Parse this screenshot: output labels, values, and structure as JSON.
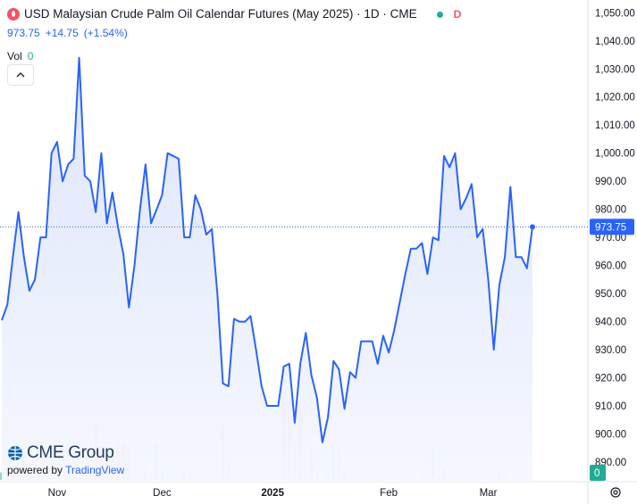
{
  "header": {
    "title": "USD Malaysian Crude Palm Oil Calendar Futures (May 2025) · 1D · CME",
    "delay_badge": "D",
    "last_price": "973.75",
    "change": "+14.75",
    "change_pct": "(+1.54%)",
    "vol_label": "Vol",
    "vol_value": "0",
    "collapse_icon": "chevron-up-icon"
  },
  "branding": {
    "brand": "CME Group",
    "powered_by": "powered by",
    "tradingview": "TradingView"
  },
  "colors": {
    "line": "#2962ff",
    "area_top": "#dbe4fb",
    "area_bottom": "#f5f7fe",
    "volume_up": "#8fd6c8",
    "volume_down": "#f3a7ac",
    "last_price_label_bg": "#2962ff",
    "volume_label_bg": "#22ab94"
  },
  "chart_data": {
    "type": "area",
    "ylim": [
      883,
      1052
    ],
    "y_ticks": [
      890,
      900,
      910,
      920,
      930,
      940,
      950,
      960,
      970,
      980,
      990,
      1000,
      1010,
      1020,
      1030,
      1040,
      1050
    ],
    "y_tick_labels": [
      "890.00",
      "900.00",
      "910.00",
      "920.00",
      "930.00",
      "940.00",
      "950.00",
      "960.00",
      "970.00",
      "980.00",
      "990.00",
      "1,000.00",
      "1,010.00",
      "1,020.00",
      "1,030.00",
      "1,040.00",
      "1,050.00"
    ],
    "x_tick_labels": [
      "Nov",
      "Dec",
      "2025",
      "Feb",
      "Mar"
    ],
    "x_tick_index": [
      10,
      29,
      49,
      70,
      88
    ],
    "last_value_label": "973.75",
    "volume_value_label": "0",
    "series": [
      {
        "values": [
          940.5,
          946,
          963,
          979,
          963,
          951,
          955,
          970,
          970,
          1000,
          1004,
          990,
          996,
          998,
          1034,
          992,
          990,
          979,
          1000,
          975,
          986,
          974,
          964,
          945,
          960,
          980,
          996,
          975,
          980,
          985,
          1000,
          999,
          998,
          970,
          970,
          985,
          980,
          971,
          973,
          950,
          918,
          917,
          941,
          940,
          940,
          942,
          930,
          917,
          910,
          910,
          910,
          924,
          925,
          904,
          925,
          936,
          921,
          913,
          897,
          906,
          926,
          923,
          909,
          922,
          920,
          933,
          933,
          933,
          925,
          935,
          929,
          937,
          947,
          957,
          966,
          966,
          968,
          957,
          970,
          969,
          999,
          995,
          1000,
          980,
          984,
          989,
          970,
          973,
          955,
          930,
          953,
          963,
          988,
          963,
          963,
          959,
          973.75
        ]
      }
    ],
    "volume": [
      {
        "v": 9,
        "c": "up"
      },
      {
        "v": 10,
        "c": "down"
      },
      {
        "v": 6,
        "c": "down"
      },
      {
        "v": 0,
        "c": "up"
      },
      {
        "v": 0,
        "c": "up"
      },
      {
        "v": 5,
        "c": "down"
      },
      {
        "v": 0,
        "c": "up"
      },
      {
        "v": 0,
        "c": "up"
      },
      {
        "v": 0,
        "c": "up"
      },
      {
        "v": 0,
        "c": "up"
      },
      {
        "v": 0,
        "c": "up"
      },
      {
        "v": 0,
        "c": "up"
      },
      {
        "v": 0,
        "c": "up"
      },
      {
        "v": 0,
        "c": "up"
      },
      {
        "v": 0,
        "c": "up"
      },
      {
        "v": 0,
        "c": "up"
      },
      {
        "v": 0,
        "c": "up"
      },
      {
        "v": 69,
        "c": "down"
      },
      {
        "v": 28,
        "c": "down"
      },
      {
        "v": 18,
        "c": "down"
      },
      {
        "v": 30,
        "c": "down"
      },
      {
        "v": 47,
        "c": "down"
      },
      {
        "v": 43,
        "c": "down"
      },
      {
        "v": 38,
        "c": "down"
      },
      {
        "v": 0,
        "c": "up"
      },
      {
        "v": 0,
        "c": "up"
      },
      {
        "v": 16,
        "c": "down"
      },
      {
        "v": 3,
        "c": "down"
      },
      {
        "v": 42,
        "c": "up"
      },
      {
        "v": 10,
        "c": "up"
      },
      {
        "v": 4,
        "c": "up"
      },
      {
        "v": 0,
        "c": "up"
      },
      {
        "v": 0,
        "c": "up"
      },
      {
        "v": 10,
        "c": "down"
      },
      {
        "v": 5,
        "c": "down"
      },
      {
        "v": 0,
        "c": "up"
      },
      {
        "v": 0,
        "c": "up"
      },
      {
        "v": 0,
        "c": "up"
      },
      {
        "v": 0,
        "c": "up"
      },
      {
        "v": 0,
        "c": "up"
      },
      {
        "v": 69,
        "c": "down"
      },
      {
        "v": 25,
        "c": "down"
      },
      {
        "v": 0,
        "c": "up"
      },
      {
        "v": 0,
        "c": "up"
      },
      {
        "v": 0,
        "c": "up"
      },
      {
        "v": 0,
        "c": "up"
      },
      {
        "v": 0,
        "c": "up"
      },
      {
        "v": 0,
        "c": "up"
      },
      {
        "v": 0,
        "c": "up"
      },
      {
        "v": 0,
        "c": "up"
      },
      {
        "v": 0,
        "c": "up"
      },
      {
        "v": 95,
        "c": "down"
      },
      {
        "v": 95,
        "c": "down"
      },
      {
        "v": 40,
        "c": "down"
      },
      {
        "v": 95,
        "c": "down"
      },
      {
        "v": 10,
        "c": "up"
      },
      {
        "v": 37,
        "c": "down"
      },
      {
        "v": 5,
        "c": "down"
      },
      {
        "v": 0,
        "c": "up"
      },
      {
        "v": 5,
        "c": "down"
      },
      {
        "v": 38,
        "c": "up"
      },
      {
        "v": 38,
        "c": "down"
      },
      {
        "v": 8,
        "c": "down"
      },
      {
        "v": 0,
        "c": "up"
      },
      {
        "v": 0,
        "c": "up"
      },
      {
        "v": 0,
        "c": "up"
      },
      {
        "v": 0,
        "c": "up"
      },
      {
        "v": 0,
        "c": "up"
      },
      {
        "v": 0,
        "c": "up"
      },
      {
        "v": 0,
        "c": "up"
      },
      {
        "v": 0,
        "c": "up"
      },
      {
        "v": 0,
        "c": "up"
      },
      {
        "v": 0,
        "c": "up"
      },
      {
        "v": 0,
        "c": "up"
      },
      {
        "v": 0,
        "c": "up"
      },
      {
        "v": 0,
        "c": "up"
      },
      {
        "v": 5,
        "c": "up"
      },
      {
        "v": 3,
        "c": "up"
      },
      {
        "v": 38,
        "c": "up"
      },
      {
        "v": 5,
        "c": "down"
      },
      {
        "v": 14,
        "c": "down"
      },
      {
        "v": 3,
        "c": "down"
      },
      {
        "v": 0,
        "c": "up"
      },
      {
        "v": 0,
        "c": "up"
      },
      {
        "v": 0,
        "c": "up"
      },
      {
        "v": 0,
        "c": "up"
      },
      {
        "v": 0,
        "c": "up"
      },
      {
        "v": 0,
        "c": "up"
      },
      {
        "v": 0,
        "c": "up"
      },
      {
        "v": 3,
        "c": "down"
      },
      {
        "v": 10,
        "c": "down"
      },
      {
        "v": 5,
        "c": "down"
      },
      {
        "v": 0,
        "c": "up"
      },
      {
        "v": 0,
        "c": "up"
      },
      {
        "v": 0,
        "c": "up"
      },
      {
        "v": 0,
        "c": "up"
      },
      {
        "v": 0,
        "c": "up"
      }
    ]
  }
}
